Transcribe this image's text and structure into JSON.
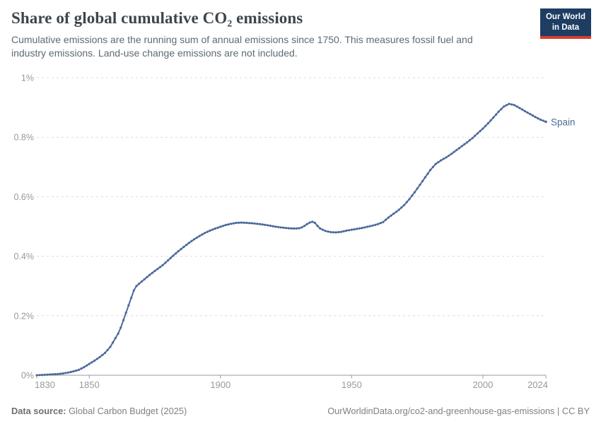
{
  "header": {
    "title": "Share of global cumulative CO₂ emissions",
    "subtitle": "Cumulative emissions are the running sum of annual emissions since 1750. This measures fossil fuel and industry emissions. Land-use change emissions are not included.",
    "logo_line1": "Our World",
    "logo_line2": "in Data"
  },
  "footer": {
    "source_label": "Data source:",
    "source_value": " Global Carbon Budget (2025)",
    "right_text": "OurWorldinData.org/co2-and-greenhouse-gas-emissions | CC BY"
  },
  "colors": {
    "line": "#4c6a9c",
    "entity_label": "#4c6a9c",
    "grid": "#dcdcdc",
    "axis": "#999999",
    "tick_label": "#999999",
    "title": "#3d454d",
    "subtitle": "#5b6b75",
    "footer": "#808080",
    "logo_bg": "#1d3d63",
    "logo_accent": "#d93d31"
  },
  "chart_data": {
    "type": "line",
    "title": "Share of global cumulative CO₂ emissions",
    "xlabel": "",
    "ylabel": "",
    "xlim": [
      1830,
      2024
    ],
    "ylim": [
      0,
      1
    ],
    "grid": "dashed-horizontal",
    "legend_position": "end-of-line",
    "yticks": [
      {
        "value": 0,
        "label": "0%"
      },
      {
        "value": 0.2,
        "label": "0.2%"
      },
      {
        "value": 0.4,
        "label": "0.4%"
      },
      {
        "value": 0.6,
        "label": "0.6%"
      },
      {
        "value": 0.8,
        "label": "0.8%"
      },
      {
        "value": 1,
        "label": "1%"
      }
    ],
    "xticks": [
      {
        "year": 1830,
        "label": "1830",
        "anchor": "start"
      },
      {
        "year": 1850,
        "label": "1850",
        "anchor": "middle"
      },
      {
        "year": 1900,
        "label": "1900",
        "anchor": "middle"
      },
      {
        "year": 1950,
        "label": "1950",
        "anchor": "middle"
      },
      {
        "year": 2000,
        "label": "2000",
        "anchor": "middle"
      },
      {
        "year": 2024,
        "label": "2024",
        "anchor": "end"
      }
    ],
    "series": [
      {
        "name": "Spain",
        "unit": "%",
        "points": [
          [
            1830,
            0.0
          ],
          [
            1832,
            0.001
          ],
          [
            1834,
            0.002
          ],
          [
            1836,
            0.003
          ],
          [
            1838,
            0.004
          ],
          [
            1840,
            0.006
          ],
          [
            1842,
            0.009
          ],
          [
            1844,
            0.013
          ],
          [
            1846,
            0.018
          ],
          [
            1848,
            0.027
          ],
          [
            1850,
            0.038
          ],
          [
            1852,
            0.049
          ],
          [
            1854,
            0.061
          ],
          [
            1856,
            0.075
          ],
          [
            1858,
            0.095
          ],
          [
            1860,
            0.125
          ],
          [
            1861,
            0.14
          ],
          [
            1862,
            0.16
          ],
          [
            1863,
            0.185
          ],
          [
            1864,
            0.21
          ],
          [
            1865,
            0.235
          ],
          [
            1866,
            0.26
          ],
          [
            1867,
            0.285
          ],
          [
            1868,
            0.3
          ],
          [
            1870,
            0.315
          ],
          [
            1872,
            0.33
          ],
          [
            1874,
            0.344
          ],
          [
            1876,
            0.357
          ],
          [
            1878,
            0.37
          ],
          [
            1880,
            0.386
          ],
          [
            1882,
            0.402
          ],
          [
            1884,
            0.417
          ],
          [
            1886,
            0.431
          ],
          [
            1888,
            0.445
          ],
          [
            1890,
            0.457
          ],
          [
            1892,
            0.468
          ],
          [
            1894,
            0.478
          ],
          [
            1896,
            0.486
          ],
          [
            1898,
            0.493
          ],
          [
            1900,
            0.499
          ],
          [
            1902,
            0.505
          ],
          [
            1904,
            0.509
          ],
          [
            1906,
            0.512
          ],
          [
            1908,
            0.513
          ],
          [
            1910,
            0.512
          ],
          [
            1912,
            0.511
          ],
          [
            1914,
            0.509
          ],
          [
            1916,
            0.507
          ],
          [
            1918,
            0.504
          ],
          [
            1920,
            0.501
          ],
          [
            1922,
            0.498
          ],
          [
            1924,
            0.496
          ],
          [
            1926,
            0.494
          ],
          [
            1928,
            0.493
          ],
          [
            1930,
            0.494
          ],
          [
            1931,
            0.497
          ],
          [
            1932,
            0.502
          ],
          [
            1933,
            0.508
          ],
          [
            1934,
            0.513
          ],
          [
            1935,
            0.516
          ],
          [
            1936,
            0.512
          ],
          [
            1937,
            0.502
          ],
          [
            1938,
            0.493
          ],
          [
            1940,
            0.485
          ],
          [
            1942,
            0.481
          ],
          [
            1944,
            0.48
          ],
          [
            1946,
            0.482
          ],
          [
            1948,
            0.486
          ],
          [
            1950,
            0.489
          ],
          [
            1952,
            0.492
          ],
          [
            1954,
            0.495
          ],
          [
            1956,
            0.499
          ],
          [
            1958,
            0.503
          ],
          [
            1960,
            0.508
          ],
          [
            1962,
            0.515
          ],
          [
            1964,
            0.53
          ],
          [
            1966,
            0.543
          ],
          [
            1968,
            0.556
          ],
          [
            1970,
            0.572
          ],
          [
            1972,
            0.592
          ],
          [
            1974,
            0.615
          ],
          [
            1976,
            0.64
          ],
          [
            1978,
            0.665
          ],
          [
            1980,
            0.69
          ],
          [
            1982,
            0.71
          ],
          [
            1984,
            0.722
          ],
          [
            1986,
            0.732
          ],
          [
            1988,
            0.744
          ],
          [
            1990,
            0.757
          ],
          [
            1992,
            0.77
          ],
          [
            1994,
            0.783
          ],
          [
            1996,
            0.797
          ],
          [
            1998,
            0.813
          ],
          [
            2000,
            0.829
          ],
          [
            2002,
            0.847
          ],
          [
            2004,
            0.866
          ],
          [
            2006,
            0.886
          ],
          [
            2008,
            0.903
          ],
          [
            2010,
            0.912
          ],
          [
            2012,
            0.908
          ],
          [
            2014,
            0.898
          ],
          [
            2016,
            0.888
          ],
          [
            2018,
            0.878
          ],
          [
            2020,
            0.868
          ],
          [
            2022,
            0.859
          ],
          [
            2024,
            0.852
          ]
        ]
      }
    ]
  }
}
